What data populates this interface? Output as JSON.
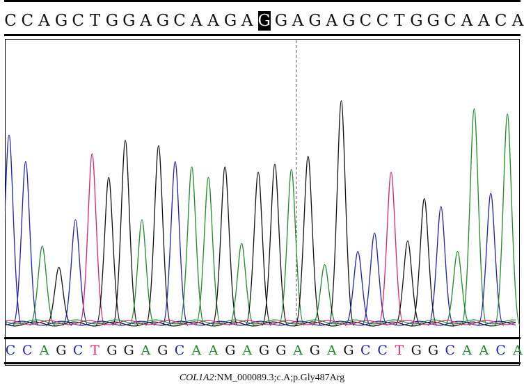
{
  "top_sequence": "CCAGCTGGAGCAAGAGGAGAGCCTGGCAACA",
  "highlight_index": 15,
  "bottom_sequence": "CCAGCTGGAGCAAGAGGAGAGCCTGGCAACA",
  "caption": {
    "gene": "COL1A2",
    "rest": ":NM_000089.3;c.A;p.Gly487Arg"
  },
  "colors": {
    "A": "#1f8a2a",
    "C": "#1f1fb0",
    "G": "#111111",
    "T": "#e0206a",
    "highlight_bg": "#000000"
  }
}
